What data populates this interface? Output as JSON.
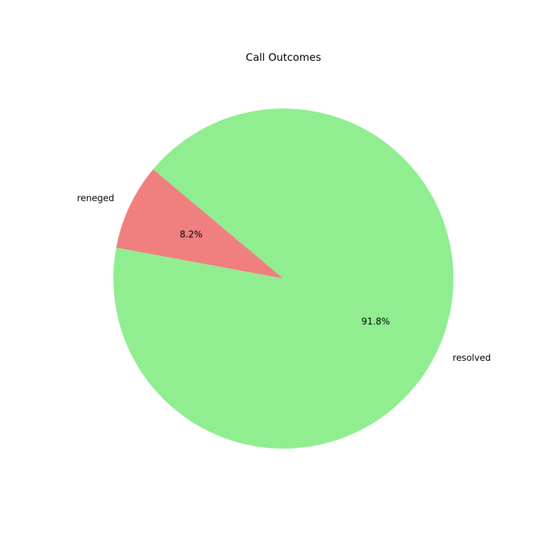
{
  "chart_data": {
    "type": "pie",
    "title": "Call Outcomes",
    "slices": [
      {
        "label": "reneged",
        "value": 8.2,
        "pct_label": "8.2%",
        "color": "#f08080"
      },
      {
        "label": "resolved",
        "value": 91.8,
        "pct_label": "91.8%",
        "color": "#90ee90"
      }
    ],
    "start_angle_deg": 140,
    "direction": "counterclockwise",
    "grid": false,
    "legend": "none"
  }
}
